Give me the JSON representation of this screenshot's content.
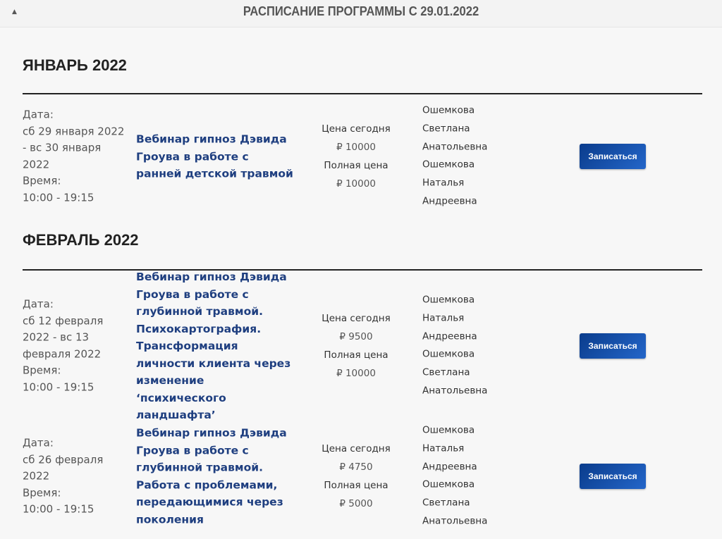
{
  "header": {
    "title": "РАСПИСАНИЕ ПРОГРАММЫ С 29.01.2022",
    "caret_icon": "caret-up-icon"
  },
  "months": [
    {
      "label": "ЯНВАРЬ 2022"
    },
    {
      "label": "ФЕВРАЛЬ 2022"
    }
  ],
  "events": [
    {
      "date_label": "Дата:",
      "date": "сб 29 января 2022 - вс 30 января 2022",
      "time_label": "Время:",
      "time": "10:00 - 19:15",
      "title": "Вебинар гипноз Дэвида Гроува в работе с ранней детской травмой",
      "price_today_label": "Цена сегодня",
      "price_today": "₽ 10000",
      "price_full_label": "Полная цена",
      "price_full": "₽ 10000",
      "trainers": [
        "Ошемкова Светлана Анатольевна",
        "Ошемкова Наталья Андреевна"
      ],
      "button": "Записаться"
    },
    {
      "date_label": "Дата:",
      "date": "сб 12 февраля 2022 - вс 13 февраля 2022",
      "time_label": "Время:",
      "time": "10:00 - 19:15",
      "title": "Вебинар гипноз Дэвида Гроува в работе с глубинной травмой. Психокартография. Трансформация личности клиента через изменение ‘психического ландшафта’",
      "price_today_label": "Цена сегодня",
      "price_today": "₽ 9500",
      "price_full_label": "Полная цена",
      "price_full": "₽ 10000",
      "trainers": [
        "Ошемкова Наталья Андреевна",
        "Ошемкова Светлана Анатольевна"
      ],
      "button": "Записаться"
    },
    {
      "date_label": "Дата:",
      "date": "сб 26 февраля 2022",
      "time_label": "Время:",
      "time": "10:00 - 19:15",
      "title": "Вебинар гипноз Дэвида Гроува в работе с глубинной травмой. Работа с проблемами, передающимися через поколения",
      "price_today_label": "Цена сегодня",
      "price_today": "₽ 4750",
      "price_full_label": "Полная цена",
      "price_full": "₽ 5000",
      "trainers": [
        "Ошемкова Наталья Андреевна",
        "Ошемкова Светлана Анатольевна"
      ],
      "button": "Записаться"
    }
  ],
  "colors": {
    "accent": "#1f3f80",
    "button": "#0a3c8c"
  }
}
